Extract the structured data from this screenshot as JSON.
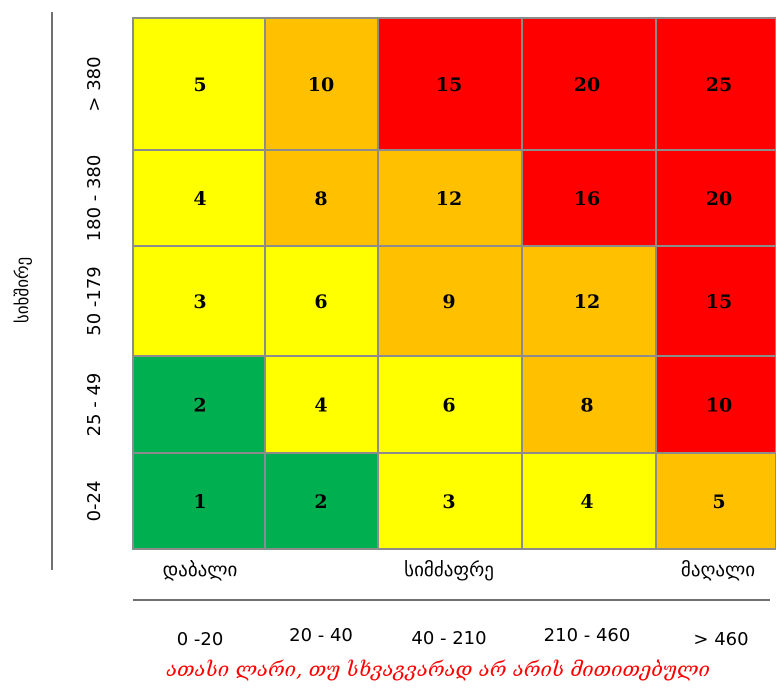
{
  "chart_data": {
    "type": "heatmap",
    "y_axis_title": "სიხშირე",
    "row_labels": [
      "> 380",
      "180 - 380",
      "50 -179",
      "25 - 49",
      "0-24"
    ],
    "column_scale_labels": [
      "დაბალი",
      "სიმძაფრე",
      "მაღალი"
    ],
    "column_labels": [
      "0 -20",
      "20 - 40",
      "40 - 210",
      "210 - 460",
      "> 460"
    ],
    "footnote": "ათასი ლარი,  თუ სხვაგვარად არ არის მითითებული",
    "values": [
      [
        5,
        10,
        15,
        20,
        25
      ],
      [
        4,
        8,
        12,
        16,
        20
      ],
      [
        3,
        6,
        9,
        12,
        15
      ],
      [
        2,
        4,
        6,
        8,
        10
      ],
      [
        1,
        2,
        3,
        4,
        5
      ]
    ],
    "colors": {
      "green": "#00b050",
      "yellow": "#ffff00",
      "amber": "#ffc000",
      "red": "#ff0000",
      "grid": "#8c8c8c",
      "axis": "#404040"
    },
    "cell_colors": [
      [
        "yellow",
        "amber",
        "red",
        "red",
        "red"
      ],
      [
        "yellow",
        "amber",
        "amber",
        "red",
        "red"
      ],
      [
        "yellow",
        "yellow",
        "amber",
        "amber",
        "red"
      ],
      [
        "green",
        "yellow",
        "yellow",
        "amber",
        "red"
      ],
      [
        "green",
        "green",
        "yellow",
        "yellow",
        "amber"
      ]
    ]
  }
}
